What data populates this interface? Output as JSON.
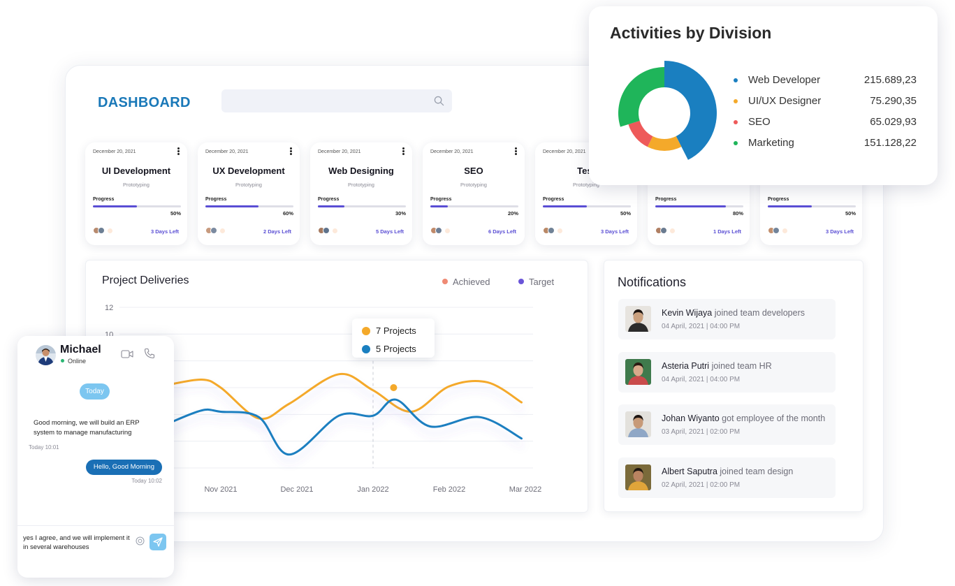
{
  "dashboard": {
    "title": "DASHBOARD",
    "search": {
      "value": "",
      "placeholder": ""
    }
  },
  "projects": [
    {
      "date": "December 20, 2021",
      "name": "UI Development",
      "category": "Prototyping",
      "progress_label": "Progress",
      "progress": 0.5,
      "progress_text": "50%",
      "days_left": "3 Days Left"
    },
    {
      "date": "December 20, 2021",
      "name": "UX Development",
      "category": "Prototyping",
      "progress_label": "Progress",
      "progress": 0.6,
      "progress_text": "60%",
      "days_left": "2 Days Left"
    },
    {
      "date": "December 20, 2021",
      "name": "Web Designing",
      "category": "Prototyping",
      "progress_label": "Progress",
      "progress": 0.3,
      "progress_text": "30%",
      "days_left": "5 Days Left"
    },
    {
      "date": "December 20, 2021",
      "name": "SEO",
      "category": "Prototyping",
      "progress_label": "Progress",
      "progress": 0.2,
      "progress_text": "20%",
      "days_left": "6 Days Left"
    },
    {
      "date": "December 20, 2021",
      "name": "Test",
      "category": "Prototyping",
      "progress_label": "Progress",
      "progress": 0.5,
      "progress_text": "50%",
      "days_left": "3 Days Left"
    },
    {
      "date": "",
      "name": "",
      "category": "",
      "progress_label": "Progress",
      "progress": 0.8,
      "progress_text": "80%",
      "days_left": "1 Days Left"
    },
    {
      "date": "",
      "name": "",
      "category": "",
      "progress_label": "Progress",
      "progress": 0.5,
      "progress_text": "50%",
      "days_left": "3 Days Left"
    }
  ],
  "deliveries": {
    "title": "Project Deliveries",
    "legend": [
      {
        "name": "Achieved",
        "color": "#ef8a74"
      },
      {
        "name": "Target",
        "color": "#6a55d8"
      }
    ],
    "tooltip": [
      {
        "text": "7 Projects",
        "color": "#f4a92a"
      },
      {
        "text": "5 Projects",
        "color": "#1a7fc0"
      }
    ]
  },
  "chart_data": {
    "type": "line",
    "title": "Project Deliveries",
    "x": [
      "Nov 2021",
      "Dec 2021",
      "Jan 2022",
      "Feb 2022",
      "Mar 2022"
    ],
    "y_ticks": [
      "12",
      "10"
    ],
    "ylim": [
      0,
      12
    ],
    "grid": true,
    "series": [
      {
        "color": "#f4a92a",
        "points": [
          [
            -0.7,
            6.2
          ],
          [
            -0.25,
            6.6
          ],
          [
            0,
            6.0
          ],
          [
            0.5,
            3.7
          ],
          [
            0.9,
            4.8
          ],
          [
            1.55,
            7.0
          ],
          [
            2.0,
            5.8
          ],
          [
            2.5,
            4.2
          ],
          [
            3.0,
            6.1
          ],
          [
            3.5,
            6.4
          ],
          [
            3.95,
            4.9
          ]
        ]
      },
      {
        "color": "#1a7fc0",
        "points": [
          [
            -0.7,
            3.3
          ],
          [
            -0.25,
            4.3
          ],
          [
            0,
            4.2
          ],
          [
            0.5,
            3.8
          ],
          [
            0.9,
            1.0
          ],
          [
            1.55,
            3.9
          ],
          [
            2.0,
            3.9
          ],
          [
            2.3,
            5.1
          ],
          [
            2.75,
            3.1
          ],
          [
            3.4,
            3.8
          ],
          [
            3.95,
            2.2
          ]
        ]
      }
    ],
    "highlight_point": [
      2.27,
      6.0
    ]
  },
  "notifications": {
    "title": "Notifications",
    "items": [
      {
        "name": "Kevin Wijaya",
        "action": "joined team developers",
        "time": "04 April, 2021 | 04:00 PM"
      },
      {
        "name": "Asteria Putri",
        "action": "joined team HR",
        "time": "04 April, 2021 | 04:00 PM"
      },
      {
        "name": "Johan Wiyanto",
        "action": "got employee of the month",
        "time": "03 April, 2021 | 02:00 PM"
      },
      {
        "name": "Albert  Saputra",
        "action": "joined team design",
        "time": "02 April, 2021 | 02:00 PM"
      }
    ]
  },
  "activities": {
    "title": "Activities by Division",
    "divisions": [
      {
        "label": "Web Developer",
        "value_text": "215.689,23",
        "value": 215689.23,
        "color": "#1a7fc0"
      },
      {
        "label": "UI/UX Designer",
        "value_text": "75.290,35",
        "value": 75290.35,
        "color": "#f4a92a"
      },
      {
        "label": "SEO",
        "value_text": "65.029,93",
        "value": 65029.93,
        "color": "#ee5a5a"
      },
      {
        "label": "Marketing",
        "value_text": "151.128,22",
        "value": 151128.22,
        "color": "#1fb55a"
      }
    ]
  },
  "chat": {
    "contact": "Michael",
    "status": "Online",
    "day_label": "Today",
    "messages": [
      {
        "direction": "in",
        "text": "Good morning, we will build an ERP system to manage manufacturing",
        "time": "Today 10:01"
      },
      {
        "direction": "out",
        "text": "Hello, Good Morning",
        "time": "Today 10:02"
      }
    ],
    "input_value": "yes I agree, and we will implement it in  several warehouses"
  }
}
